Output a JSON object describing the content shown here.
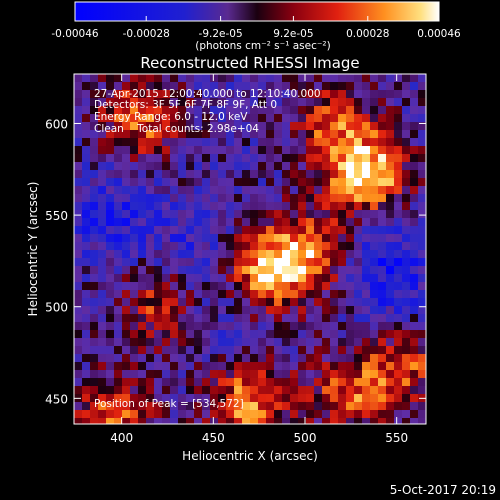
{
  "chart_data": {
    "type": "heatmap",
    "title": "Reconstructed RHESSI Image",
    "xlabel": "Heliocentric X (arcsec)",
    "ylabel": "Heliocentric Y (arcsec)",
    "xlim": [
      374,
      566
    ],
    "ylim": [
      436,
      627
    ],
    "x_ticks": [
      "400",
      "450",
      "500",
      "550"
    ],
    "y_ticks": [
      "450",
      "500",
      "550",
      "600"
    ],
    "colorbar": {
      "range": [
        -0.00046,
        0.00046
      ],
      "tick_labels": [
        "-0.00046",
        "-0.00028",
        "-9.2e-05",
        "9.2e-05",
        "0.00028",
        "0.00046"
      ],
      "units_label": "(photons cm⁻² s⁻¹ asec⁻²)"
    },
    "annotations": {
      "time_range": "27-Apr-2015 12:00:40.000 to 12:10:40.000",
      "detectors": "Detectors: 3F 5F 6F 7F 8F 9F, Att 0",
      "energy_range": "Energy Range: 6.0 - 12.0 keV",
      "algorithm": "Clean    Total counts: 2.98e+04",
      "peak_position": "Position of Peak = [534,572]"
    },
    "hot_regions": [
      {
        "x": 534,
        "y": 572,
        "value": 0.00046
      },
      {
        "x": 478,
        "y": 518,
        "value": 0.00034
      },
      {
        "x": 500,
        "y": 530,
        "value": 0.0003
      },
      {
        "x": 410,
        "y": 602,
        "value": 0.00028
      },
      {
        "x": 395,
        "y": 440,
        "value": 0.00028
      },
      {
        "x": 470,
        "y": 448,
        "value": 0.00034
      },
      {
        "x": 525,
        "y": 452,
        "value": 0.00026
      },
      {
        "x": 555,
        "y": 470,
        "value": 0.00024
      },
      {
        "x": 420,
        "y": 500,
        "value": 0.0002
      },
      {
        "x": 515,
        "y": 600,
        "value": 0.00022
      }
    ],
    "cold_regions": [
      {
        "x": 395,
        "y": 550,
        "value": -0.00028
      },
      {
        "x": 440,
        "y": 530,
        "value": -0.00022
      },
      {
        "x": 545,
        "y": 530,
        "value": -0.00026
      },
      {
        "x": 550,
        "y": 500,
        "value": -0.00022
      },
      {
        "x": 460,
        "y": 495,
        "value": -0.00018
      }
    ]
  },
  "footer_date": "5-Oct-2017 20:19"
}
